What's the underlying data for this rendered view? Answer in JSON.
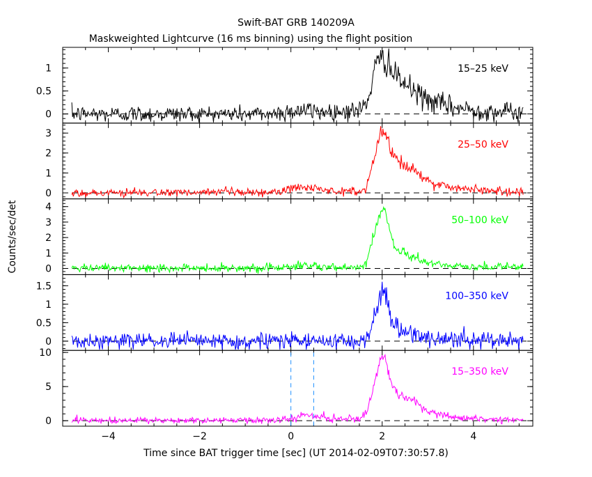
{
  "chart_data": {
    "type": "line",
    "title": "Swift-BAT GRB 140209A",
    "subtitle": "Maskweighted Lightcurve (16 ms binning) using the flight position",
    "xlabel": "Time since BAT trigger time [sec] (UT 2014-02-09T07:30:57.8)",
    "ylabel": "Counts/sec/det",
    "xlim": [
      -5,
      5.3
    ],
    "x_ticks": [
      -4,
      -2,
      0,
      2,
      4
    ],
    "x_tick_labels": [
      "−4",
      "−2",
      "0",
      "2",
      "4"
    ],
    "grid": false,
    "panels": [
      {
        "name": "15–25 keV",
        "color": "#000000",
        "ylim": [
          -0.2,
          1.45
        ],
        "y_ticks": [
          0,
          0.5,
          1
        ],
        "y_tick_labels": [
          "0",
          "0.5",
          "1"
        ],
        "noise": 0.09,
        "profile": [
          [
            -5.0,
            0.0
          ],
          [
            -0.4,
            0.0
          ],
          [
            -0.1,
            0.05
          ],
          [
            0.2,
            0.08
          ],
          [
            0.5,
            0.06
          ],
          [
            1.0,
            0.05
          ],
          [
            1.5,
            0.08
          ],
          [
            1.65,
            0.2
          ],
          [
            1.75,
            0.6
          ],
          [
            1.85,
            1.0
          ],
          [
            2.0,
            1.2
          ],
          [
            2.15,
            1.15
          ],
          [
            2.25,
            0.8
          ],
          [
            2.4,
            0.75
          ],
          [
            2.6,
            0.55
          ],
          [
            3.0,
            0.3
          ],
          [
            3.5,
            0.15
          ],
          [
            4.0,
            0.08
          ],
          [
            5.2,
            0.02
          ]
        ]
      },
      {
        "name": "25–50 keV",
        "color": "#ff0000",
        "ylim": [
          -0.3,
          3.5
        ],
        "y_ticks": [
          0,
          1,
          2,
          3
        ],
        "y_tick_labels": [
          "0",
          "1",
          "2",
          "3"
        ],
        "noise": 0.1,
        "profile": [
          [
            -5.0,
            0.0
          ],
          [
            -0.3,
            0.02
          ],
          [
            0.0,
            0.2
          ],
          [
            0.2,
            0.3
          ],
          [
            0.5,
            0.25
          ],
          [
            0.8,
            0.1
          ],
          [
            1.5,
            0.05
          ],
          [
            1.65,
            0.3
          ],
          [
            1.8,
            1.5
          ],
          [
            1.95,
            3.0
          ],
          [
            2.05,
            3.1
          ],
          [
            2.2,
            2.2
          ],
          [
            2.35,
            1.6
          ],
          [
            2.6,
            1.2
          ],
          [
            3.0,
            0.6
          ],
          [
            3.5,
            0.3
          ],
          [
            4.0,
            0.15
          ],
          [
            5.2,
            0.05
          ]
        ]
      },
      {
        "name": "50–100 keV",
        "color": "#00ff00",
        "ylim": [
          -0.4,
          4.5
        ],
        "y_ticks": [
          0,
          1,
          2,
          3,
          4
        ],
        "y_tick_labels": [
          "0",
          "1",
          "2",
          "3",
          "4"
        ],
        "noise": 0.12,
        "profile": [
          [
            -5.0,
            0.0
          ],
          [
            -0.2,
            0.05
          ],
          [
            0.2,
            0.2
          ],
          [
            0.5,
            0.15
          ],
          [
            1.0,
            0.05
          ],
          [
            1.5,
            0.05
          ],
          [
            1.65,
            0.3
          ],
          [
            1.8,
            1.8
          ],
          [
            1.95,
            3.5
          ],
          [
            2.05,
            4.0
          ],
          [
            2.15,
            2.5
          ],
          [
            2.3,
            1.3
          ],
          [
            2.6,
            0.8
          ],
          [
            3.0,
            0.4
          ],
          [
            3.5,
            0.15
          ],
          [
            5.2,
            0.05
          ]
        ]
      },
      {
        "name": "100–350 keV",
        "color": "#0000ff",
        "ylim": [
          -0.25,
          1.8
        ],
        "y_ticks": [
          0,
          0.5,
          1,
          1.5
        ],
        "y_tick_labels": [
          "0",
          "0.5",
          "1",
          "1.5"
        ],
        "noise": 0.11,
        "profile": [
          [
            -5.0,
            0.0
          ],
          [
            1.5,
            0.0
          ],
          [
            1.65,
            0.1
          ],
          [
            1.8,
            0.5
          ],
          [
            1.95,
            1.3
          ],
          [
            2.05,
            1.5
          ],
          [
            2.2,
            0.5
          ],
          [
            2.4,
            0.3
          ],
          [
            2.8,
            0.12
          ],
          [
            3.3,
            0.05
          ],
          [
            5.2,
            0.0
          ]
        ]
      },
      {
        "name": "15–350 keV",
        "color": "#ff00ff",
        "ylim": [
          -0.8,
          10.3
        ],
        "y_ticks": [
          0,
          5,
          10
        ],
        "y_tick_labels": [
          "0",
          "5",
          "10"
        ],
        "noise": 0.22,
        "profile": [
          [
            -5.0,
            0.0
          ],
          [
            -0.2,
            0.05
          ],
          [
            0.1,
            0.5
          ],
          [
            0.3,
            0.8
          ],
          [
            0.6,
            0.6
          ],
          [
            1.0,
            0.2
          ],
          [
            1.5,
            0.2
          ],
          [
            1.65,
            1.0
          ],
          [
            1.8,
            4.5
          ],
          [
            1.95,
            9.0
          ],
          [
            2.05,
            9.5
          ],
          [
            2.2,
            5.5
          ],
          [
            2.35,
            4.0
          ],
          [
            2.6,
            3.2
          ],
          [
            3.0,
            1.5
          ],
          [
            3.5,
            0.6
          ],
          [
            4.0,
            0.3
          ],
          [
            5.2,
            0.1
          ]
        ]
      }
    ],
    "vlines": [
      0,
      0.5
    ],
    "vline_color": "#1e90ff"
  }
}
